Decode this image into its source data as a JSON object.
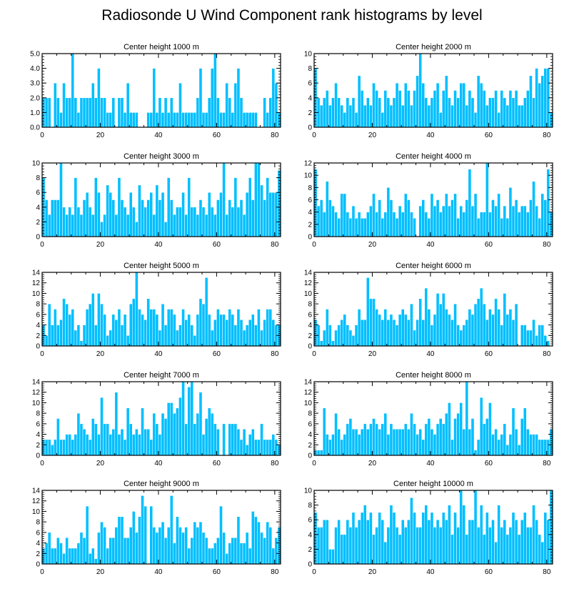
{
  "page": {
    "title": "Radiosonde U Wind Component rank histograms by level"
  },
  "style": {
    "bar_color": "#00bfff",
    "bar_edge": "#ffffff",
    "axis_color": "#000000"
  },
  "chart_data": [
    {
      "type": "bar",
      "title": "Center height 1000 m",
      "x_start": 0,
      "xlim": [
        0,
        82
      ],
      "xticks": [
        "0",
        "20",
        "40",
        "60",
        "80"
      ],
      "ylim": [
        0,
        5
      ],
      "yticks": [
        "0.0",
        "1.0",
        "2.0",
        "3.0",
        "4.0",
        "5.0"
      ],
      "values": [
        2,
        2,
        2,
        0,
        3,
        2,
        1,
        3,
        2,
        2,
        5,
        2,
        1,
        2,
        2,
        2,
        2,
        3,
        2,
        4,
        2,
        2,
        1,
        1,
        2,
        0,
        2,
        2,
        1,
        3,
        1,
        1,
        1,
        0,
        0,
        0,
        1,
        1,
        4,
        1,
        2,
        1,
        2,
        1,
        2,
        1,
        1,
        3,
        1,
        1,
        1,
        1,
        1,
        2,
        4,
        1,
        1,
        2,
        4,
        5,
        2,
        1,
        1,
        3,
        2,
        1,
        3,
        4,
        2,
        1,
        1,
        1,
        1,
        1,
        0,
        0,
        2,
        1,
        2,
        4,
        3,
        1
      ]
    },
    {
      "type": "bar",
      "title": "Center height 2000 m",
      "x_start": 0,
      "xlim": [
        0,
        82
      ],
      "xticks": [
        "0",
        "20",
        "40",
        "60",
        "80"
      ],
      "ylim": [
        0,
        10
      ],
      "yticks": [
        "0",
        "2",
        "4",
        "6",
        "8",
        "10"
      ],
      "values": [
        8,
        4,
        3,
        4,
        5,
        3,
        4,
        6,
        4,
        3,
        2,
        4,
        3,
        4,
        2,
        7,
        5,
        3,
        4,
        3,
        6,
        5,
        4,
        2,
        5,
        4,
        3,
        4,
        6,
        5,
        3,
        6,
        5,
        3,
        5,
        7,
        10,
        6,
        4,
        3,
        4,
        5,
        6,
        2,
        5,
        7,
        4,
        3,
        5,
        4,
        6,
        6,
        3,
        5,
        4,
        2,
        7,
        6,
        5,
        3,
        4,
        4,
        5,
        2,
        5,
        4,
        3,
        5,
        4,
        5,
        3,
        3,
        4,
        5,
        7,
        4,
        8,
        6,
        7,
        8,
        8,
        2
      ]
    },
    {
      "type": "bar",
      "title": "Center height 3000 m",
      "x_start": 0,
      "xlim": [
        0,
        82
      ],
      "xticks": [
        "0",
        "20",
        "40",
        "60",
        "80"
      ],
      "ylim": [
        0,
        10
      ],
      "yticks": [
        "0",
        "2",
        "4",
        "6",
        "8",
        "10"
      ],
      "values": [
        8,
        5,
        3,
        5,
        5,
        5,
        10,
        4,
        3,
        4,
        3,
        8,
        4,
        3,
        5,
        6,
        4,
        3,
        8,
        6,
        2,
        3,
        7,
        6,
        5,
        3,
        8,
        5,
        4,
        3,
        6,
        4,
        2,
        7,
        5,
        4,
        5,
        6,
        3,
        7,
        5,
        6,
        2,
        8,
        5,
        3,
        4,
        4,
        6,
        3,
        8,
        4,
        4,
        3,
        5,
        4,
        3,
        6,
        4,
        3,
        5,
        6,
        10,
        3,
        5,
        4,
        8,
        4,
        5,
        3,
        6,
        8,
        5,
        10,
        10,
        7,
        5,
        8,
        6,
        6,
        6,
        9
      ]
    },
    {
      "type": "bar",
      "title": "Center height 4000 m",
      "x_start": 0,
      "xlim": [
        0,
        82
      ],
      "xticks": [
        "0",
        "20",
        "40",
        "60",
        "80"
      ],
      "ylim": [
        0,
        12
      ],
      "yticks": [
        "0",
        "2",
        "4",
        "6",
        "8",
        "10",
        "12"
      ],
      "values": [
        11,
        5,
        6,
        4,
        9,
        6,
        5,
        4,
        3,
        7,
        7,
        4,
        3,
        5,
        3,
        4,
        3,
        3,
        4,
        5,
        7,
        4,
        6,
        3,
        4,
        8,
        6,
        4,
        3,
        5,
        4,
        7,
        6,
        4,
        3,
        0,
        5,
        6,
        4,
        3,
        7,
        5,
        6,
        4,
        5,
        7,
        5,
        6,
        7,
        3,
        5,
        4,
        6,
        11,
        5,
        7,
        3,
        4,
        4,
        12,
        4,
        6,
        5,
        7,
        3,
        5,
        3,
        8,
        5,
        6,
        4,
        5,
        5,
        4,
        6,
        9,
        5,
        3,
        7,
        6,
        11,
        4
      ]
    },
    {
      "type": "bar",
      "title": "Center height 5000 m",
      "x_start": 0,
      "xlim": [
        0,
        82
      ],
      "xticks": [
        "0",
        "20",
        "40",
        "60",
        "80"
      ],
      "ylim": [
        0,
        14
      ],
      "yticks": [
        "0",
        "2",
        "4",
        "6",
        "8",
        "10",
        "12",
        "14"
      ],
      "values": [
        4,
        2,
        8,
        4,
        7,
        4,
        5,
        9,
        8,
        6,
        7,
        3,
        4,
        1,
        4,
        7,
        8,
        10,
        4,
        10,
        8,
        6,
        2,
        3,
        6,
        5,
        7,
        4,
        6,
        2,
        8,
        9,
        14,
        7,
        6,
        5,
        9,
        7,
        7,
        6,
        3,
        8,
        4,
        7,
        7,
        6,
        3,
        4,
        7,
        5,
        6,
        4,
        2,
        6,
        9,
        8,
        13,
        6,
        3,
        5,
        7,
        6,
        6,
        5,
        7,
        6,
        4,
        7,
        5,
        3,
        4,
        5,
        6,
        4,
        7,
        3,
        5,
        7,
        7,
        5,
        4,
        4
      ]
    },
    {
      "type": "bar",
      "title": "Center height 6000 m",
      "x_start": 0,
      "xlim": [
        0,
        82
      ],
      "xticks": [
        "0",
        "20",
        "40",
        "60",
        "80"
      ],
      "ylim": [
        0,
        14
      ],
      "yticks": [
        "0",
        "2",
        "4",
        "6",
        "8",
        "10",
        "12",
        "14"
      ],
      "values": [
        5,
        4,
        1,
        3,
        7,
        4,
        1,
        3,
        4,
        5,
        6,
        4,
        3,
        2,
        4,
        7,
        5,
        5,
        13,
        9,
        9,
        7,
        6,
        5,
        7,
        5,
        6,
        5,
        4,
        6,
        7,
        6,
        5,
        8,
        3,
        5,
        9,
        5,
        11,
        7,
        4,
        6,
        10,
        8,
        10,
        7,
        6,
        5,
        8,
        4,
        3,
        4,
        5,
        7,
        6,
        8,
        9,
        11,
        8,
        5,
        7,
        6,
        9,
        7,
        4,
        10,
        6,
        7,
        5,
        8,
        0,
        4,
        4,
        3,
        3,
        5,
        2,
        4,
        4,
        2,
        1,
        0
      ]
    },
    {
      "type": "bar",
      "title": "Center height 7000 m",
      "x_start": 0,
      "xlim": [
        0,
        82
      ],
      "xticks": [
        "0",
        "20",
        "40",
        "60",
        "80"
      ],
      "ylim": [
        0,
        14
      ],
      "yticks": [
        "0",
        "2",
        "4",
        "6",
        "8",
        "10",
        "12",
        "14"
      ],
      "values": [
        3,
        3,
        3,
        2,
        3,
        7,
        3,
        3,
        4,
        4,
        3,
        4,
        8,
        6,
        5,
        4,
        3,
        7,
        6,
        4,
        11,
        6,
        6,
        4,
        5,
        12,
        4,
        5,
        3,
        9,
        6,
        4,
        5,
        4,
        9,
        5,
        5,
        3,
        8,
        6,
        4,
        8,
        7,
        10,
        10,
        8,
        9,
        11,
        14,
        6,
        13,
        14,
        6,
        8,
        12,
        4,
        7,
        9,
        8,
        6,
        5,
        0,
        6,
        0,
        6,
        6,
        6,
        5,
        3,
        5,
        2,
        4,
        5,
        3,
        3,
        6,
        3,
        3,
        3,
        4,
        3,
        2
      ]
    },
    {
      "type": "bar",
      "title": "Center height 8000 m",
      "x_start": 0,
      "xlim": [
        0,
        82
      ],
      "xticks": [
        "0",
        "20",
        "40",
        "60",
        "80"
      ],
      "ylim": [
        0,
        14
      ],
      "yticks": [
        "0",
        "2",
        "4",
        "6",
        "8",
        "10",
        "12",
        "14"
      ],
      "values": [
        1,
        1,
        1,
        9,
        4,
        3,
        4,
        8,
        5,
        3,
        4,
        6,
        7,
        5,
        5,
        4,
        5,
        6,
        5,
        6,
        7,
        6,
        5,
        6,
        8,
        4,
        6,
        5,
        5,
        5,
        5,
        6,
        5,
        8,
        6,
        4,
        5,
        3,
        6,
        7,
        5,
        4,
        6,
        7,
        6,
        8,
        10,
        3,
        7,
        8,
        10,
        5,
        14,
        5,
        7,
        1,
        3,
        11,
        6,
        7,
        10,
        4,
        5,
        3,
        4,
        6,
        2,
        4,
        9,
        5,
        2,
        7,
        9,
        5,
        4,
        4,
        4,
        3,
        3,
        3,
        3,
        5
      ]
    },
    {
      "type": "bar",
      "title": "Center height 9000 m",
      "x_start": 0,
      "xlim": [
        0,
        82
      ],
      "xticks": [
        "0",
        "20",
        "40",
        "60",
        "80"
      ],
      "ylim": [
        0,
        14
      ],
      "yticks": [
        "0",
        "2",
        "4",
        "6",
        "8",
        "10",
        "12",
        "14"
      ],
      "values": [
        3,
        4,
        6,
        3,
        3,
        5,
        4,
        2,
        5,
        3,
        3,
        3,
        4,
        6,
        5,
        11,
        2,
        3,
        1,
        6,
        8,
        7,
        3,
        5,
        5,
        7,
        9,
        9,
        5,
        5,
        7,
        10,
        6,
        9,
        13,
        11,
        0,
        11,
        7,
        6,
        7,
        8,
        5,
        7,
        13,
        4,
        9,
        7,
        6,
        7,
        3,
        5,
        8,
        7,
        8,
        6,
        5,
        3,
        3,
        4,
        5,
        11,
        6,
        2,
        4,
        5,
        5,
        9,
        4,
        4,
        6,
        3,
        10,
        9,
        8,
        6,
        5,
        8,
        7,
        3,
        5,
        7
      ]
    },
    {
      "type": "bar",
      "title": "Center height 10000 m",
      "x_start": 0,
      "xlim": [
        0,
        82
      ],
      "xticks": [
        "0",
        "20",
        "40",
        "60",
        "80"
      ],
      "ylim": [
        0,
        10
      ],
      "yticks": [
        "0",
        "2",
        "4",
        "6",
        "8",
        "10"
      ],
      "values": [
        7,
        5,
        5,
        6,
        6,
        2,
        2,
        5,
        6,
        4,
        4,
        6,
        5,
        7,
        5,
        6,
        7,
        8,
        6,
        7,
        4,
        5,
        7,
        6,
        3,
        5,
        8,
        7,
        5,
        4,
        6,
        5,
        6,
        9,
        7,
        5,
        5,
        7,
        8,
        6,
        7,
        5,
        6,
        5,
        7,
        6,
        8,
        4,
        7,
        5,
        10,
        8,
        4,
        6,
        6,
        10,
        5,
        8,
        4,
        7,
        5,
        6,
        3,
        8,
        5,
        6,
        4,
        5,
        7,
        6,
        4,
        6,
        7,
        5,
        5,
        8,
        6,
        4,
        3,
        7,
        6,
        10
      ]
    }
  ]
}
